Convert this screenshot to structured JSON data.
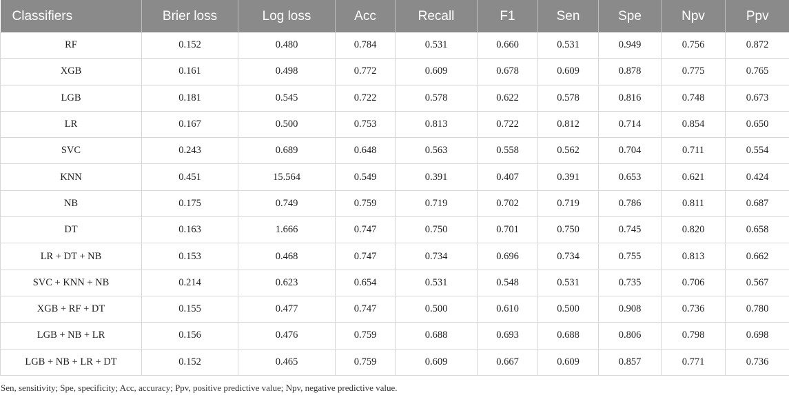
{
  "table": {
    "headers": [
      "Classifiers",
      "Brier loss",
      "Log loss",
      "Acc",
      "Recall",
      "F1",
      "Sen",
      "Spe",
      "Npv",
      "Ppv"
    ],
    "rows": [
      [
        "RF",
        "0.152",
        "0.480",
        "0.784",
        "0.531",
        "0.660",
        "0.531",
        "0.949",
        "0.756",
        "0.872"
      ],
      [
        "XGB",
        "0.161",
        "0.498",
        "0.772",
        "0.609",
        "0.678",
        "0.609",
        "0.878",
        "0.775",
        "0.765"
      ],
      [
        "LGB",
        "0.181",
        "0.545",
        "0.722",
        "0.578",
        "0.622",
        "0.578",
        "0.816",
        "0.748",
        "0.673"
      ],
      [
        "LR",
        "0.167",
        "0.500",
        "0.753",
        "0.813",
        "0.722",
        "0.812",
        "0.714",
        "0.854",
        "0.650"
      ],
      [
        "SVC",
        "0.243",
        "0.689",
        "0.648",
        "0.563",
        "0.558",
        "0.562",
        "0.704",
        "0.711",
        "0.554"
      ],
      [
        "KNN",
        "0.451",
        "15.564",
        "0.549",
        "0.391",
        "0.407",
        "0.391",
        "0.653",
        "0.621",
        "0.424"
      ],
      [
        "NB",
        "0.175",
        "0.749",
        "0.759",
        "0.719",
        "0.702",
        "0.719",
        "0.786",
        "0.811",
        "0.687"
      ],
      [
        "DT",
        "0.163",
        "1.666",
        "0.747",
        "0.750",
        "0.701",
        "0.750",
        "0.745",
        "0.820",
        "0.658"
      ],
      [
        "LR + DT + NB",
        "0.153",
        "0.468",
        "0.747",
        "0.734",
        "0.696",
        "0.734",
        "0.755",
        "0.813",
        "0.662"
      ],
      [
        "SVC + KNN + NB",
        "0.214",
        "0.623",
        "0.654",
        "0.531",
        "0.548",
        "0.531",
        "0.735",
        "0.706",
        "0.567"
      ],
      [
        "XGB + RF + DT",
        "0.155",
        "0.477",
        "0.747",
        "0.500",
        "0.610",
        "0.500",
        "0.908",
        "0.736",
        "0.780"
      ],
      [
        "LGB + NB + LR",
        "0.156",
        "0.476",
        "0.759",
        "0.688",
        "0.693",
        "0.688",
        "0.806",
        "0.798",
        "0.698"
      ],
      [
        "LGB + NB + LR + DT",
        "0.152",
        "0.465",
        "0.759",
        "0.609",
        "0.667",
        "0.609",
        "0.857",
        "0.771",
        "0.736"
      ]
    ]
  },
  "footnote": "Sen, sensitivity; Spe, specificity; Acc, accuracy; Ppv, positive predictive value; Npv, negative predictive value.",
  "colors": {
    "header_background": "#8a8a8a",
    "header_text": "#ffffff",
    "grid_lines": "#d6d6d6"
  }
}
